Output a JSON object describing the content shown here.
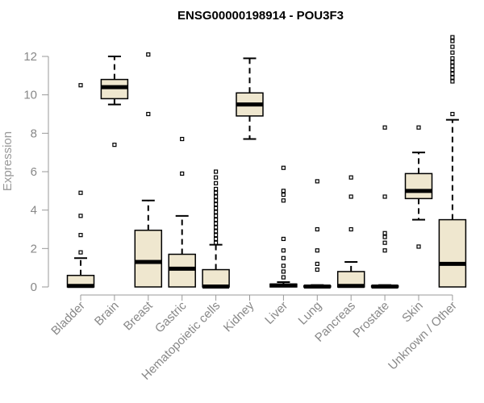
{
  "chart_data": {
    "type": "boxplot",
    "title": "ENSG00000198914 - POU3F3",
    "xlabel": "",
    "ylabel": "Expression",
    "ylim": [
      0,
      12.5
    ],
    "yticks": [
      0,
      2,
      4,
      6,
      8,
      10,
      12
    ],
    "grid": false,
    "colors": {
      "box_fill": "#efe7cf",
      "stroke": "#000000",
      "axis": "#999999",
      "text": "#888888"
    },
    "categories": [
      "Bladder",
      "Brain",
      "Breast",
      "Gastric",
      "Hematopoietic cells",
      "Kidney",
      "Liver",
      "Lung",
      "Pancreas",
      "Prostate",
      "Skin",
      "Unknown / Other"
    ],
    "boxes": [
      {
        "category": "Bladder",
        "whisker_low": 0,
        "q1": 0,
        "median": 0.05,
        "q3": 0.6,
        "whisker_high": 1.5,
        "outliers": [
          1.8,
          2.7,
          3.7,
          4.9,
          10.5
        ]
      },
      {
        "category": "Brain",
        "whisker_low": 9.5,
        "q1": 9.8,
        "median": 10.4,
        "q3": 10.8,
        "whisker_high": 12.0,
        "outliers": [
          7.4
        ]
      },
      {
        "category": "Breast",
        "whisker_low": 0,
        "q1": 0,
        "median": 1.3,
        "q3": 2.95,
        "whisker_high": 4.5,
        "outliers": [
          9.0,
          12.1
        ]
      },
      {
        "category": "Gastric",
        "whisker_low": 0,
        "q1": 0,
        "median": 0.95,
        "q3": 1.7,
        "whisker_high": 3.7,
        "outliers": [
          5.9,
          7.7
        ]
      },
      {
        "category": "Hematopoietic cells",
        "whisker_low": 0,
        "q1": 0,
        "median": 0.02,
        "q3": 0.9,
        "whisker_high": 2.2,
        "outliers": [
          2.3,
          2.5,
          2.7,
          2.9,
          3.1,
          3.3,
          3.5,
          3.7,
          3.9,
          4.1,
          4.3,
          4.5,
          4.7,
          4.9,
          5.1,
          5.4,
          5.7,
          6.0
        ]
      },
      {
        "category": "Kidney",
        "whisker_low": 7.7,
        "q1": 8.9,
        "median": 9.5,
        "q3": 10.1,
        "whisker_high": 11.9,
        "outliers": []
      },
      {
        "category": "Liver",
        "whisker_low": 0,
        "q1": 0,
        "median": 0.08,
        "q3": 0.15,
        "whisker_high": 0.25,
        "outliers": [
          0.5,
          0.8,
          1.1,
          1.5,
          1.9,
          2.5,
          4.5,
          4.8,
          5.0,
          6.2
        ]
      },
      {
        "category": "Lung",
        "whisker_low": 0,
        "q1": 0,
        "median": 0.02,
        "q3": 0.06,
        "whisker_high": 0.1,
        "outliers": [
          0.9,
          1.2,
          1.9,
          3.0,
          5.5
        ]
      },
      {
        "category": "Pancreas",
        "whisker_low": 0,
        "q1": 0,
        "median": 0.05,
        "q3": 0.8,
        "whisker_high": 1.3,
        "outliers": [
          3.0,
          4.7,
          5.7
        ]
      },
      {
        "category": "Prostate",
        "whisker_low": 0,
        "q1": 0,
        "median": 0.02,
        "q3": 0.06,
        "whisker_high": 0.1,
        "outliers": [
          1.9,
          2.3,
          2.6,
          2.8,
          4.7,
          8.3
        ]
      },
      {
        "category": "Skin",
        "whisker_low": 3.5,
        "q1": 4.6,
        "median": 5.0,
        "q3": 5.9,
        "whisker_high": 7.0,
        "outliers": [
          2.1,
          8.3
        ]
      },
      {
        "category": "Unknown / Other",
        "whisker_low": 0,
        "q1": 0,
        "median": 1.2,
        "q3": 3.5,
        "whisker_high": 8.7,
        "outliers": [
          9.0,
          10.7,
          10.9,
          11.1,
          11.3,
          11.5,
          11.7,
          11.9,
          12.2,
          12.5,
          12.8,
          13.0
        ]
      }
    ]
  }
}
